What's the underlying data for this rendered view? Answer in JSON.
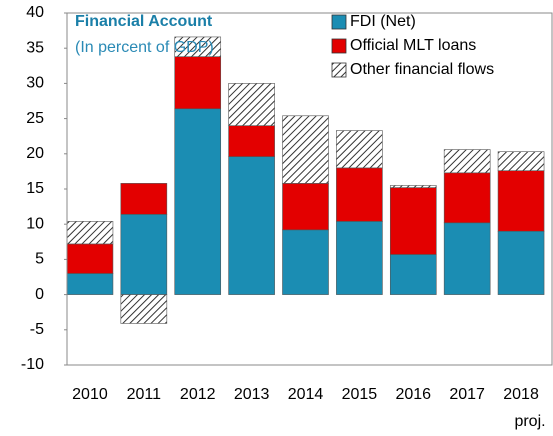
{
  "chart_data": {
    "type": "stacked_bar",
    "title": "Financial Account",
    "subtitle": "(In percent of GDP)",
    "categories": [
      "2010",
      "2011",
      "2012",
      "2013",
      "2014",
      "2015",
      "2016",
      "2017",
      "2018"
    ],
    "annotations": [
      "proj."
    ],
    "series": [
      {
        "name": "FDI (Net)",
        "color": "#1b8db3",
        "values": [
          3.0,
          11.4,
          26.4,
          19.6,
          9.2,
          10.4,
          5.7,
          10.2,
          9.0
        ]
      },
      {
        "name": "Official MLT loans",
        "color": "#e30000",
        "values": [
          4.2,
          4.4,
          7.4,
          4.4,
          6.6,
          7.6,
          9.5,
          7.1,
          8.6
        ]
      },
      {
        "name": "Other financial flows",
        "color": "hatch",
        "values": [
          3.2,
          -4.1,
          2.8,
          6.0,
          9.6,
          5.3,
          0.3,
          3.3,
          2.7
        ]
      }
    ],
    "ylim": [
      -10,
      40
    ],
    "yticks": [
      -10,
      -5,
      0,
      5,
      10,
      15,
      20,
      25,
      30,
      35,
      40
    ],
    "legend": "top-right"
  }
}
